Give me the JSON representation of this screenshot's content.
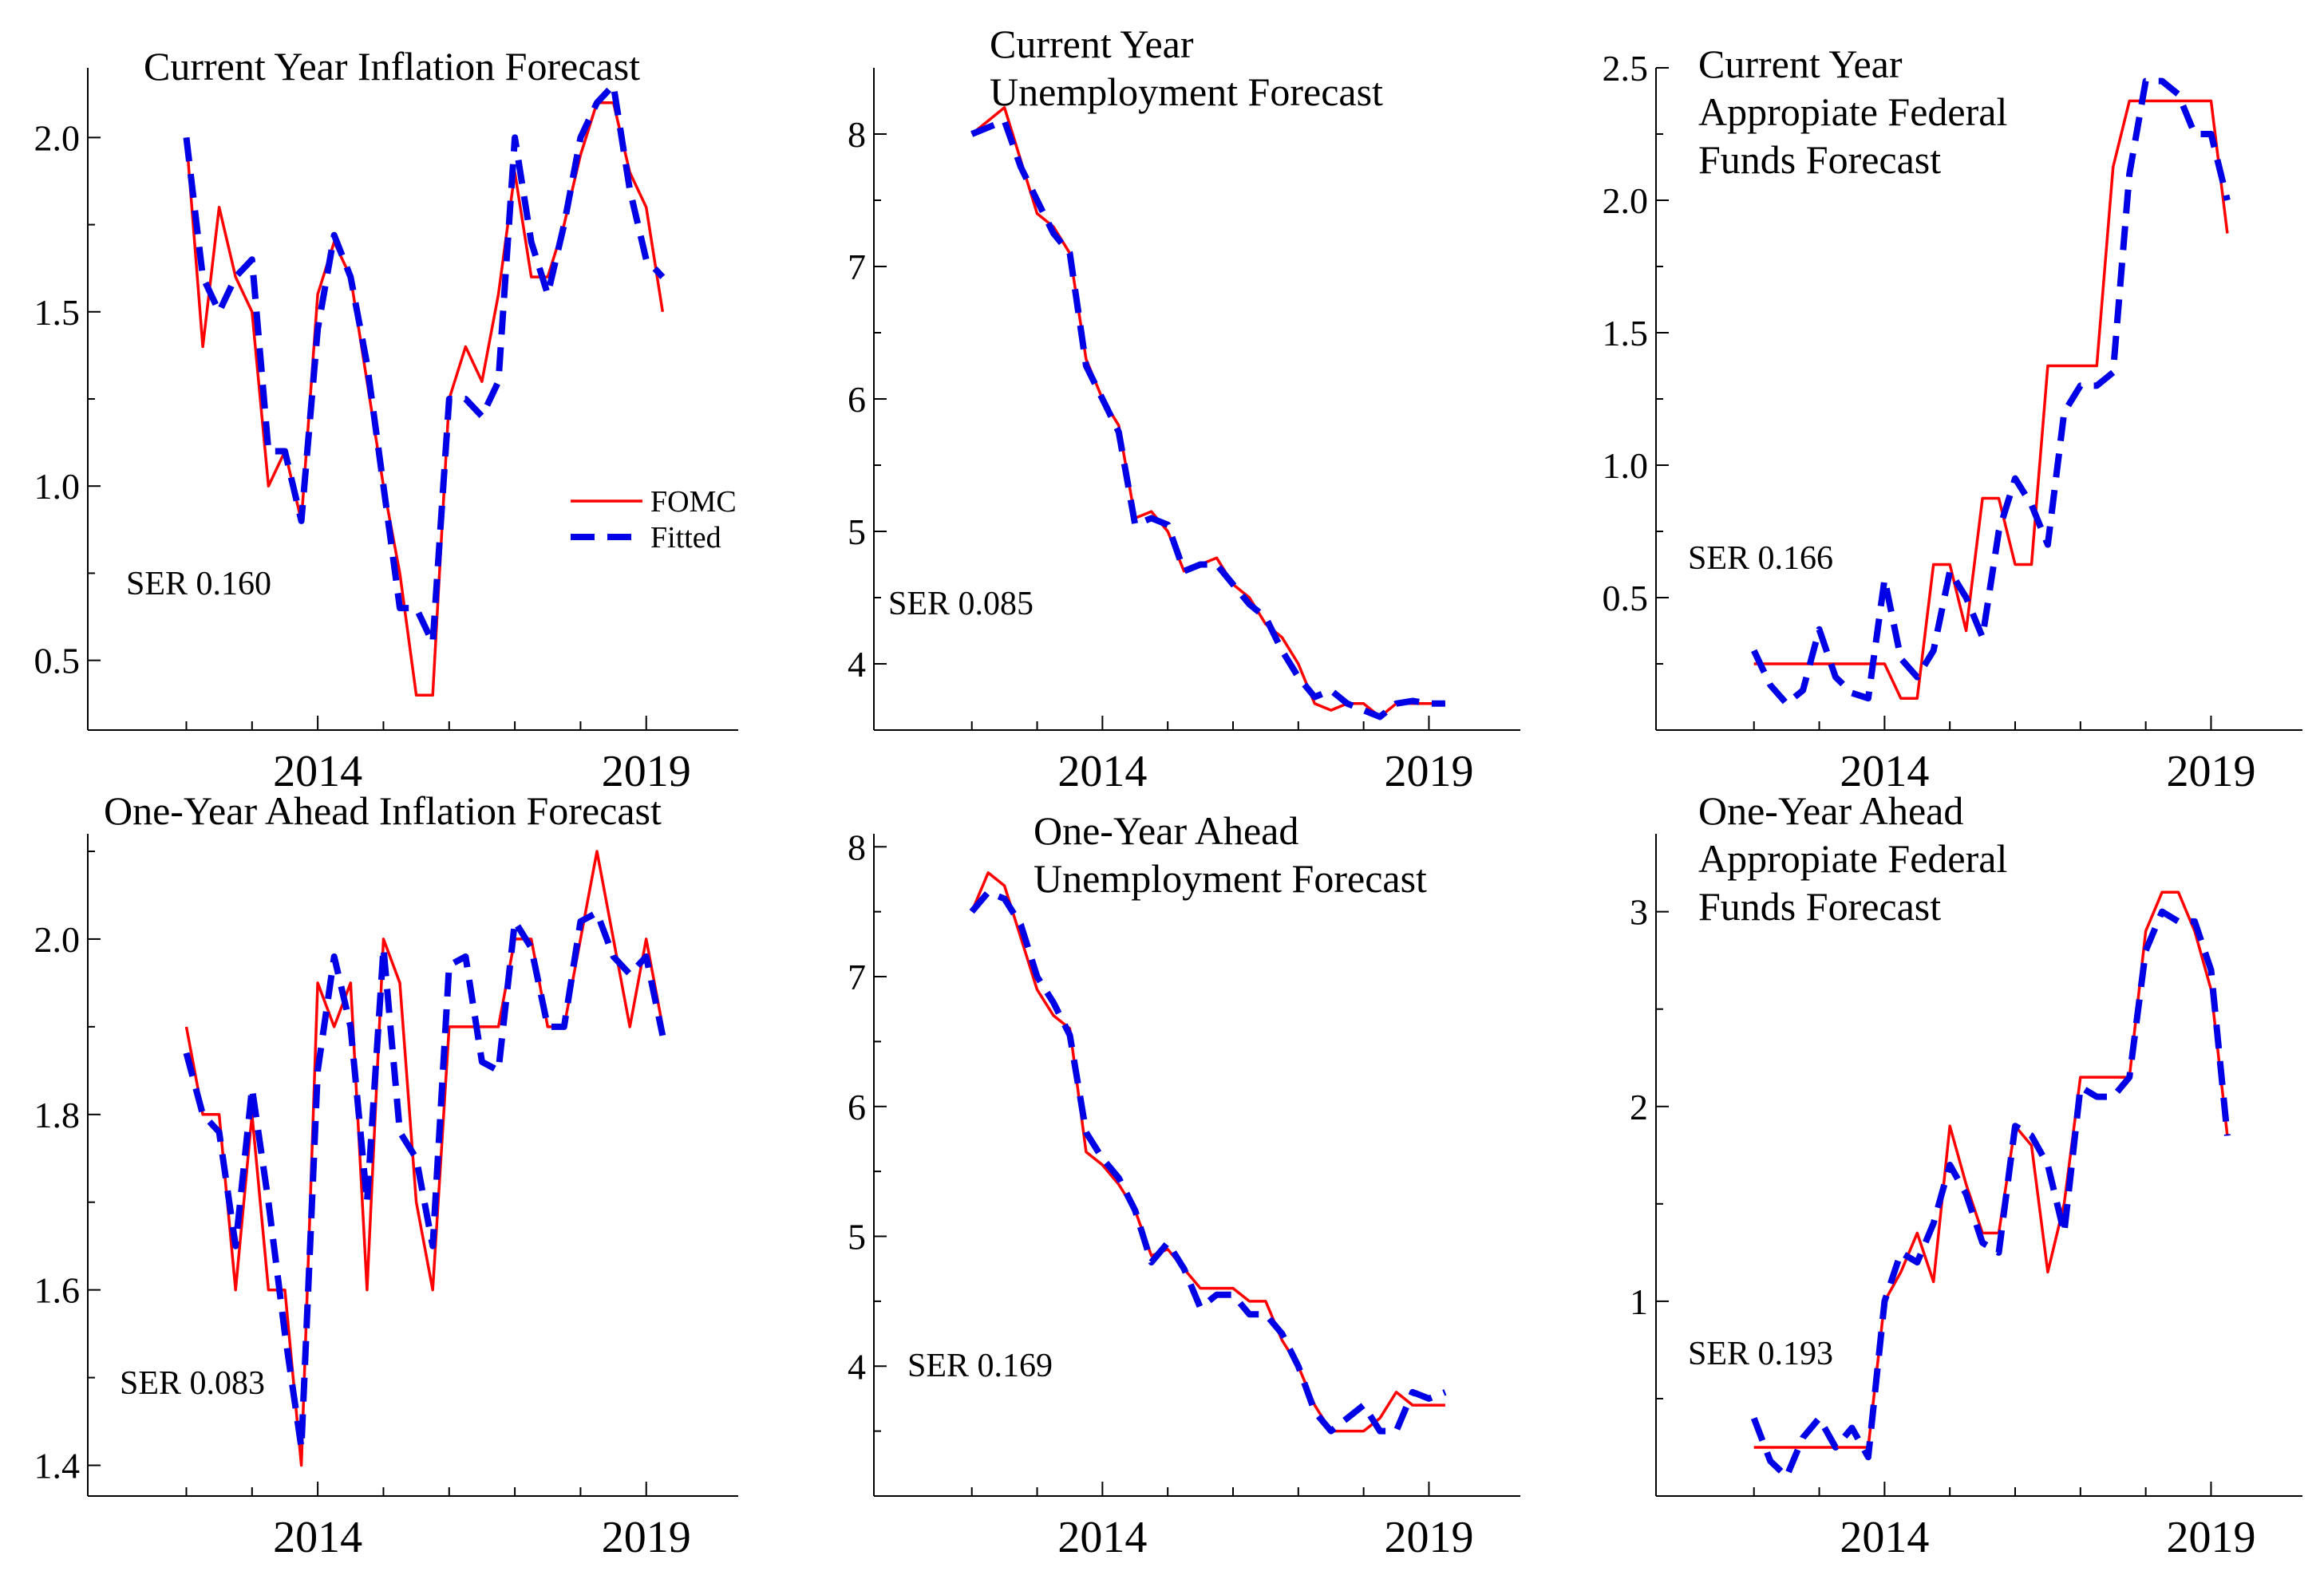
{
  "colors": {
    "fomc": "#ff0000",
    "fitted": "#0000e6",
    "axis": "#000000"
  },
  "legend": {
    "items": [
      "FOMC",
      "Fitted"
    ]
  },
  "chart_data": [
    {
      "type": "line",
      "title": [
        "Current Year Inflation Forecast"
      ],
      "ser_label": "SER 0.160",
      "has_legend": true,
      "xlim": [
        2010.5,
        2020.4
      ],
      "xticks": [
        2014,
        2019
      ],
      "xtick_labels": [
        "2014",
        "2019"
      ],
      "xtick_minor": [
        2012,
        2013,
        2014,
        2015,
        2016,
        2017,
        2018,
        2019
      ],
      "ylim": [
        0.3,
        2.2
      ],
      "yticks": [
        0.5,
        1.0,
        1.5,
        2.0
      ],
      "ytick_labels": [
        "0.5",
        "1.0",
        "1.5",
        "2.0"
      ],
      "x": [
        2012.0,
        2012.25,
        2012.5,
        2012.75,
        2013.0,
        2013.25,
        2013.5,
        2013.75,
        2014.0,
        2014.25,
        2014.5,
        2014.75,
        2015.0,
        2015.25,
        2015.5,
        2015.75,
        2016.0,
        2016.25,
        2016.5,
        2016.75,
        2017.0,
        2017.25,
        2017.5,
        2017.75,
        2018.0,
        2018.25,
        2018.5,
        2018.75,
        2019.0,
        2019.25
      ],
      "series": [
        {
          "name": "FOMC",
          "values": [
            2.0,
            1.4,
            1.8,
            1.6,
            1.5,
            1.0,
            1.1,
            0.9,
            1.55,
            1.7,
            1.6,
            1.3,
            1.0,
            0.75,
            0.4,
            0.4,
            1.25,
            1.4,
            1.3,
            1.55,
            1.9,
            1.6,
            1.6,
            1.75,
            1.95,
            2.1,
            2.1,
            1.9,
            1.8,
            1.5
          ]
        },
        {
          "name": "Fitted",
          "values": [
            2.0,
            1.6,
            1.5,
            1.6,
            1.65,
            1.1,
            1.1,
            0.9,
            1.45,
            1.72,
            1.6,
            1.35,
            1.0,
            0.65,
            0.65,
            0.55,
            1.25,
            1.25,
            1.2,
            1.3,
            2.0,
            1.7,
            1.55,
            1.75,
            2.0,
            2.1,
            2.15,
            1.85,
            1.65,
            1.6
          ]
        }
      ]
    },
    {
      "type": "line",
      "title": [
        "Current Year",
        "Unemployment Forecast"
      ],
      "ser_label": "SER 0.085",
      "has_legend": false,
      "xlim": [
        2010.5,
        2020.4
      ],
      "xticks": [
        2014,
        2019
      ],
      "xtick_labels": [
        "2014",
        "2019"
      ],
      "xtick_minor": [
        2012,
        2013,
        2014,
        2015,
        2016,
        2017,
        2018,
        2019
      ],
      "ylim": [
        3.5,
        8.5
      ],
      "yticks": [
        4,
        5,
        6,
        7,
        8
      ],
      "ytick_labels": [
        "4",
        "5",
        "6",
        "7",
        "8"
      ],
      "x": [
        2012.0,
        2012.25,
        2012.5,
        2012.75,
        2013.0,
        2013.25,
        2013.5,
        2013.75,
        2014.0,
        2014.25,
        2014.5,
        2014.75,
        2015.0,
        2015.25,
        2015.5,
        2015.75,
        2016.0,
        2016.25,
        2016.5,
        2016.75,
        2017.0,
        2017.25,
        2017.5,
        2017.75,
        2018.0,
        2018.25,
        2018.5,
        2018.75,
        2019.0,
        2019.25
      ],
      "series": [
        {
          "name": "FOMC",
          "values": [
            8.0,
            8.1,
            8.2,
            7.8,
            7.4,
            7.3,
            7.1,
            6.3,
            6.0,
            5.8,
            5.1,
            5.15,
            5.0,
            4.7,
            4.75,
            4.8,
            4.6,
            4.5,
            4.3,
            4.2,
            4.0,
            3.7,
            3.65,
            3.7,
            3.7,
            3.6,
            3.7,
            3.7,
            3.7,
            3.7
          ]
        },
        {
          "name": "Fitted",
          "values": [
            8.0,
            8.05,
            8.1,
            7.75,
            7.5,
            7.25,
            7.1,
            6.25,
            6.0,
            5.75,
            5.05,
            5.1,
            5.05,
            4.7,
            4.75,
            4.75,
            4.6,
            4.45,
            4.35,
            4.1,
            3.9,
            3.75,
            3.8,
            3.7,
            3.65,
            3.6,
            3.7,
            3.72,
            3.7,
            3.7
          ]
        }
      ]
    },
    {
      "type": "line",
      "title": [
        "Current Year",
        "Appropiate Federal",
        "Funds Forecast"
      ],
      "ser_label": "SER 0.166",
      "has_legend": false,
      "xlim": [
        2010.5,
        2020.4
      ],
      "xticks": [
        2014,
        2019
      ],
      "xtick_labels": [
        "2014",
        "2019"
      ],
      "xtick_minor": [
        2012,
        2013,
        2014,
        2015,
        2016,
        2017,
        2018,
        2019
      ],
      "ylim": [
        0.0,
        2.5
      ],
      "yticks": [
        0.5,
        1.0,
        1.5,
        2.0,
        2.5
      ],
      "ytick_labels": [
        "0.5",
        "1.0",
        "1.5",
        "2.0",
        "2.5"
      ],
      "x": [
        2012.0,
        2012.25,
        2012.5,
        2012.75,
        2013.0,
        2013.25,
        2013.5,
        2013.75,
        2014.0,
        2014.25,
        2014.5,
        2014.75,
        2015.0,
        2015.25,
        2015.5,
        2015.75,
        2016.0,
        2016.25,
        2016.5,
        2016.75,
        2017.0,
        2017.25,
        2017.5,
        2017.75,
        2018.0,
        2018.25,
        2018.5,
        2018.75,
        2019.0,
        2019.25
      ],
      "series": [
        {
          "name": "FOMC",
          "values": [
            0.25,
            0.25,
            0.25,
            0.25,
            0.25,
            0.25,
            0.25,
            0.25,
            0.25,
            0.12,
            0.12,
            0.625,
            0.625,
            0.375,
            0.875,
            0.875,
            0.625,
            0.625,
            1.375,
            1.375,
            1.375,
            1.375,
            2.125,
            2.375,
            2.375,
            2.375,
            2.375,
            2.375,
            2.375,
            1.875
          ]
        },
        {
          "name": "Fitted",
          "values": [
            0.3,
            0.17,
            0.1,
            0.15,
            0.38,
            0.2,
            0.14,
            0.12,
            0.57,
            0.27,
            0.2,
            0.3,
            0.6,
            0.5,
            0.35,
            0.75,
            0.95,
            0.85,
            0.7,
            1.2,
            1.3,
            1.3,
            1.35,
            2.1,
            2.45,
            2.45,
            2.4,
            2.25,
            2.25,
            2.0
          ]
        }
      ]
    },
    {
      "type": "line",
      "title": [
        "One-Year Ahead Inflation Forecast"
      ],
      "ser_label": "SER 0.083",
      "has_legend": false,
      "xlim": [
        2010.5,
        2020.4
      ],
      "xticks": [
        2014,
        2019
      ],
      "xtick_labels": [
        "2014",
        "2019"
      ],
      "xtick_minor": [
        2012,
        2013,
        2014,
        2015,
        2016,
        2017,
        2018,
        2019
      ],
      "ylim": [
        1.365,
        2.12
      ],
      "yticks": [
        1.4,
        1.6,
        1.8,
        2.0
      ],
      "ytick_labels": [
        "1.4",
        "1.6",
        "1.8",
        "2.0"
      ],
      "x": [
        2012.0,
        2012.25,
        2012.5,
        2012.75,
        2013.0,
        2013.25,
        2013.5,
        2013.75,
        2014.0,
        2014.25,
        2014.5,
        2014.75,
        2015.0,
        2015.25,
        2015.5,
        2015.75,
        2016.0,
        2016.25,
        2016.5,
        2016.75,
        2017.0,
        2017.25,
        2017.5,
        2017.75,
        2018.0,
        2018.25,
        2018.5,
        2018.75,
        2019.0,
        2019.25
      ],
      "series": [
        {
          "name": "FOMC",
          "values": [
            1.9,
            1.8,
            1.8,
            1.6,
            1.8,
            1.6,
            1.6,
            1.4,
            1.95,
            1.9,
            1.95,
            1.6,
            2.0,
            1.95,
            1.7,
            1.6,
            1.9,
            1.9,
            1.9,
            1.9,
            2.0,
            2.0,
            1.9,
            1.9,
            2.0,
            2.1,
            2.0,
            1.9,
            2.0,
            1.9
          ]
        },
        {
          "name": "Fitted",
          "values": [
            1.87,
            1.8,
            1.78,
            1.65,
            1.83,
            1.7,
            1.55,
            1.42,
            1.85,
            1.98,
            1.9,
            1.7,
            1.99,
            1.78,
            1.75,
            1.65,
            1.97,
            1.98,
            1.86,
            1.85,
            2.02,
            1.99,
            1.9,
            1.9,
            2.02,
            2.03,
            1.98,
            1.96,
            1.98,
            1.89
          ]
        }
      ]
    },
    {
      "type": "line",
      "title": [
        "One-Year Ahead",
        "Unemployment Forecast"
      ],
      "ser_label": "SER 0.169",
      "has_legend": false,
      "xlim": [
        2010.5,
        2020.4
      ],
      "xticks": [
        2014,
        2019
      ],
      "xtick_labels": [
        "2014",
        "2019"
      ],
      "xtick_minor": [
        2012,
        2013,
        2014,
        2015,
        2016,
        2017,
        2018,
        2019
      ],
      "ylim": [
        3.0,
        8.1
      ],
      "yticks": [
        4,
        5,
        6,
        7,
        8
      ],
      "ytick_labels": [
        "4",
        "5",
        "6",
        "7",
        "8"
      ],
      "x": [
        2012.0,
        2012.25,
        2012.5,
        2012.75,
        2013.0,
        2013.25,
        2013.5,
        2013.75,
        2014.0,
        2014.25,
        2014.5,
        2014.75,
        2015.0,
        2015.25,
        2015.5,
        2015.75,
        2016.0,
        2016.25,
        2016.5,
        2016.75,
        2017.0,
        2017.25,
        2017.5,
        2017.75,
        2018.0,
        2018.25,
        2018.5,
        2018.75,
        2019.0,
        2019.25
      ],
      "series": [
        {
          "name": "FOMC",
          "values": [
            7.5,
            7.8,
            7.7,
            7.3,
            6.9,
            6.7,
            6.6,
            5.65,
            5.55,
            5.4,
            5.2,
            4.85,
            4.9,
            4.75,
            4.6,
            4.6,
            4.6,
            4.5,
            4.5,
            4.2,
            4.0,
            3.7,
            3.5,
            3.5,
            3.5,
            3.6,
            3.8,
            3.7,
            3.7,
            3.7
          ]
        },
        {
          "name": "Fitted",
          "values": [
            7.5,
            7.65,
            7.6,
            7.4,
            7.0,
            6.8,
            6.55,
            5.8,
            5.6,
            5.45,
            5.2,
            4.8,
            4.95,
            4.75,
            4.45,
            4.55,
            4.55,
            4.4,
            4.4,
            4.25,
            4.0,
            3.65,
            3.5,
            3.6,
            3.7,
            3.5,
            3.5,
            3.8,
            3.75,
            3.8
          ]
        }
      ]
    },
    {
      "type": "line",
      "title": [
        "One-Year Ahead",
        "Appropiate Federal",
        "Funds Forecast"
      ],
      "ser_label": "SER 0.193",
      "has_legend": false,
      "xlim": [
        2010.5,
        2020.4
      ],
      "xticks": [
        2014,
        2019
      ],
      "xtick_labels": [
        "2014",
        "2019"
      ],
      "xtick_minor": [
        2012,
        2013,
        2014,
        2015,
        2016,
        2017,
        2018,
        2019
      ],
      "ylim": [
        0.0,
        3.4
      ],
      "yticks": [
        1,
        2,
        3
      ],
      "ytick_labels": [
        "1",
        "2",
        "3"
      ],
      "x": [
        2012.0,
        2012.25,
        2012.5,
        2012.75,
        2013.0,
        2013.25,
        2013.5,
        2013.75,
        2014.0,
        2014.25,
        2014.5,
        2014.75,
        2015.0,
        2015.25,
        2015.5,
        2015.75,
        2016.0,
        2016.25,
        2016.5,
        2016.75,
        2017.0,
        2017.25,
        2017.5,
        2017.75,
        2018.0,
        2018.25,
        2018.5,
        2018.75,
        2019.0,
        2019.25
      ],
      "series": [
        {
          "name": "FOMC",
          "values": [
            0.25,
            0.25,
            0.25,
            0.25,
            0.25,
            0.25,
            0.25,
            0.25,
            1.0,
            1.15,
            1.35,
            1.1,
            1.9,
            1.6,
            1.35,
            1.35,
            1.9,
            1.8,
            1.15,
            1.5,
            2.15,
            2.15,
            2.15,
            2.15,
            2.9,
            3.1,
            3.1,
            2.9,
            2.6,
            1.85
          ]
        },
        {
          "name": "Fitted",
          "values": [
            0.4,
            0.18,
            0.1,
            0.3,
            0.4,
            0.25,
            0.35,
            0.2,
            1.0,
            1.25,
            1.2,
            1.4,
            1.7,
            1.55,
            1.3,
            1.25,
            1.9,
            1.85,
            1.7,
            1.35,
            2.1,
            2.05,
            2.05,
            2.15,
            2.8,
            3.0,
            2.95,
            2.95,
            2.7,
            1.85
          ]
        }
      ]
    }
  ]
}
